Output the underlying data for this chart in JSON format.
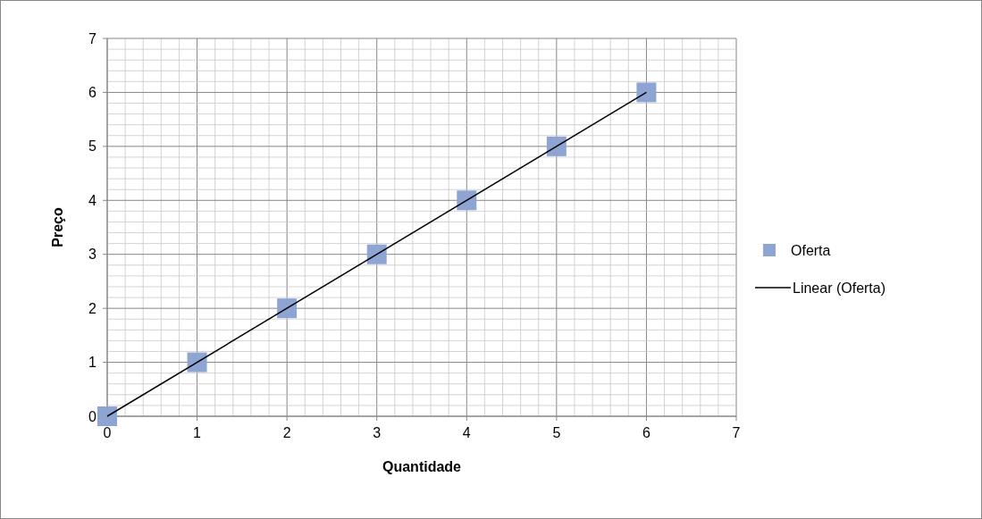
{
  "chart_data": {
    "type": "scatter",
    "xlabel": "Quantidade",
    "ylabel": "Preço",
    "xlim": [
      0,
      7
    ],
    "ylim": [
      0,
      7
    ],
    "xticks": [
      0,
      {
        "value": 0.2,
        "label": null
      },
      {
        "value": 0.4,
        "label": null
      },
      {
        "value": 0.6,
        "label": null
      },
      {
        "value": 0.8,
        "label": null
      },
      1,
      {
        "value": 1.2,
        "label": null
      },
      {
        "value": 1.4,
        "label": null
      },
      {
        "value": 1.6,
        "label": null
      },
      {
        "value": 1.8,
        "label": null
      },
      2,
      {
        "value": 2.2,
        "label": null
      },
      {
        "value": 2.4,
        "label": null
      },
      {
        "value": 2.6,
        "label": null
      },
      {
        "value": 2.8,
        "label": null
      },
      3,
      {
        "value": 3.2,
        "label": null
      },
      {
        "value": 3.4,
        "label": null
      },
      {
        "value": 3.6,
        "label": null
      },
      {
        "value": 3.8,
        "label": null
      },
      4,
      {
        "value": 4.2,
        "label": null
      },
      {
        "value": 4.4,
        "label": null
      },
      {
        "value": 4.6,
        "label": null
      },
      {
        "value": 4.8,
        "label": null
      },
      5,
      {
        "value": 5.2,
        "label": null
      },
      {
        "value": 5.4,
        "label": null
      },
      {
        "value": 5.6,
        "label": null
      },
      {
        "value": 5.8,
        "label": null
      },
      6,
      {
        "value": 6.2,
        "label": null
      },
      {
        "value": 6.4,
        "label": null
      },
      {
        "value": 6.6,
        "label": null
      },
      {
        "value": 6.8,
        "label": null
      },
      7
    ],
    "yticks": [
      0,
      {
        "value": 0.2,
        "label": null
      },
      {
        "value": 0.4,
        "label": null
      },
      {
        "value": 0.6,
        "label": null
      },
      {
        "value": 0.8,
        "label": null
      },
      1,
      {
        "value": 1.2,
        "label": null
      },
      {
        "value": 1.4,
        "label": null
      },
      {
        "value": 1.6,
        "label": null
      },
      {
        "value": 1.8,
        "label": null
      },
      2,
      {
        "value": 2.2,
        "label": null
      },
      {
        "value": 2.4,
        "label": null
      },
      {
        "value": 2.6,
        "label": null
      },
      {
        "value": 2.8,
        "label": null
      },
      3,
      {
        "value": 3.2,
        "label": null
      },
      {
        "value": 3.4,
        "label": null
      },
      {
        "value": 3.6,
        "label": null
      },
      {
        "value": 3.8,
        "label": null
      },
      4,
      {
        "value": 4.2,
        "label": null
      },
      {
        "value": 4.4,
        "label": null
      },
      {
        "value": 4.6,
        "label": null
      },
      {
        "value": 4.8,
        "label": null
      },
      5,
      {
        "value": 5.2,
        "label": null
      },
      {
        "value": 5.4,
        "label": null
      },
      {
        "value": 5.6,
        "label": null
      },
      {
        "value": 5.8,
        "label": null
      },
      6,
      {
        "value": 6.2,
        "label": null
      },
      {
        "value": 6.4,
        "label": null
      },
      {
        "value": 6.6,
        "label": null
      },
      {
        "value": 6.8,
        "label": null
      },
      7
    ],
    "grid": true,
    "legend": "right",
    "series": [
      {
        "name": "Oferta",
        "marker": "square",
        "color": "#8ea5d3",
        "x": [
          0,
          1,
          2,
          3,
          4,
          5,
          6
        ],
        "values": [
          0,
          1,
          2,
          3,
          4,
          5,
          6
        ]
      },
      {
        "name": "Linear (Oferta)",
        "type": "line",
        "color": "#000000",
        "x": [
          0,
          6
        ],
        "values": [
          0,
          6
        ]
      }
    ]
  }
}
